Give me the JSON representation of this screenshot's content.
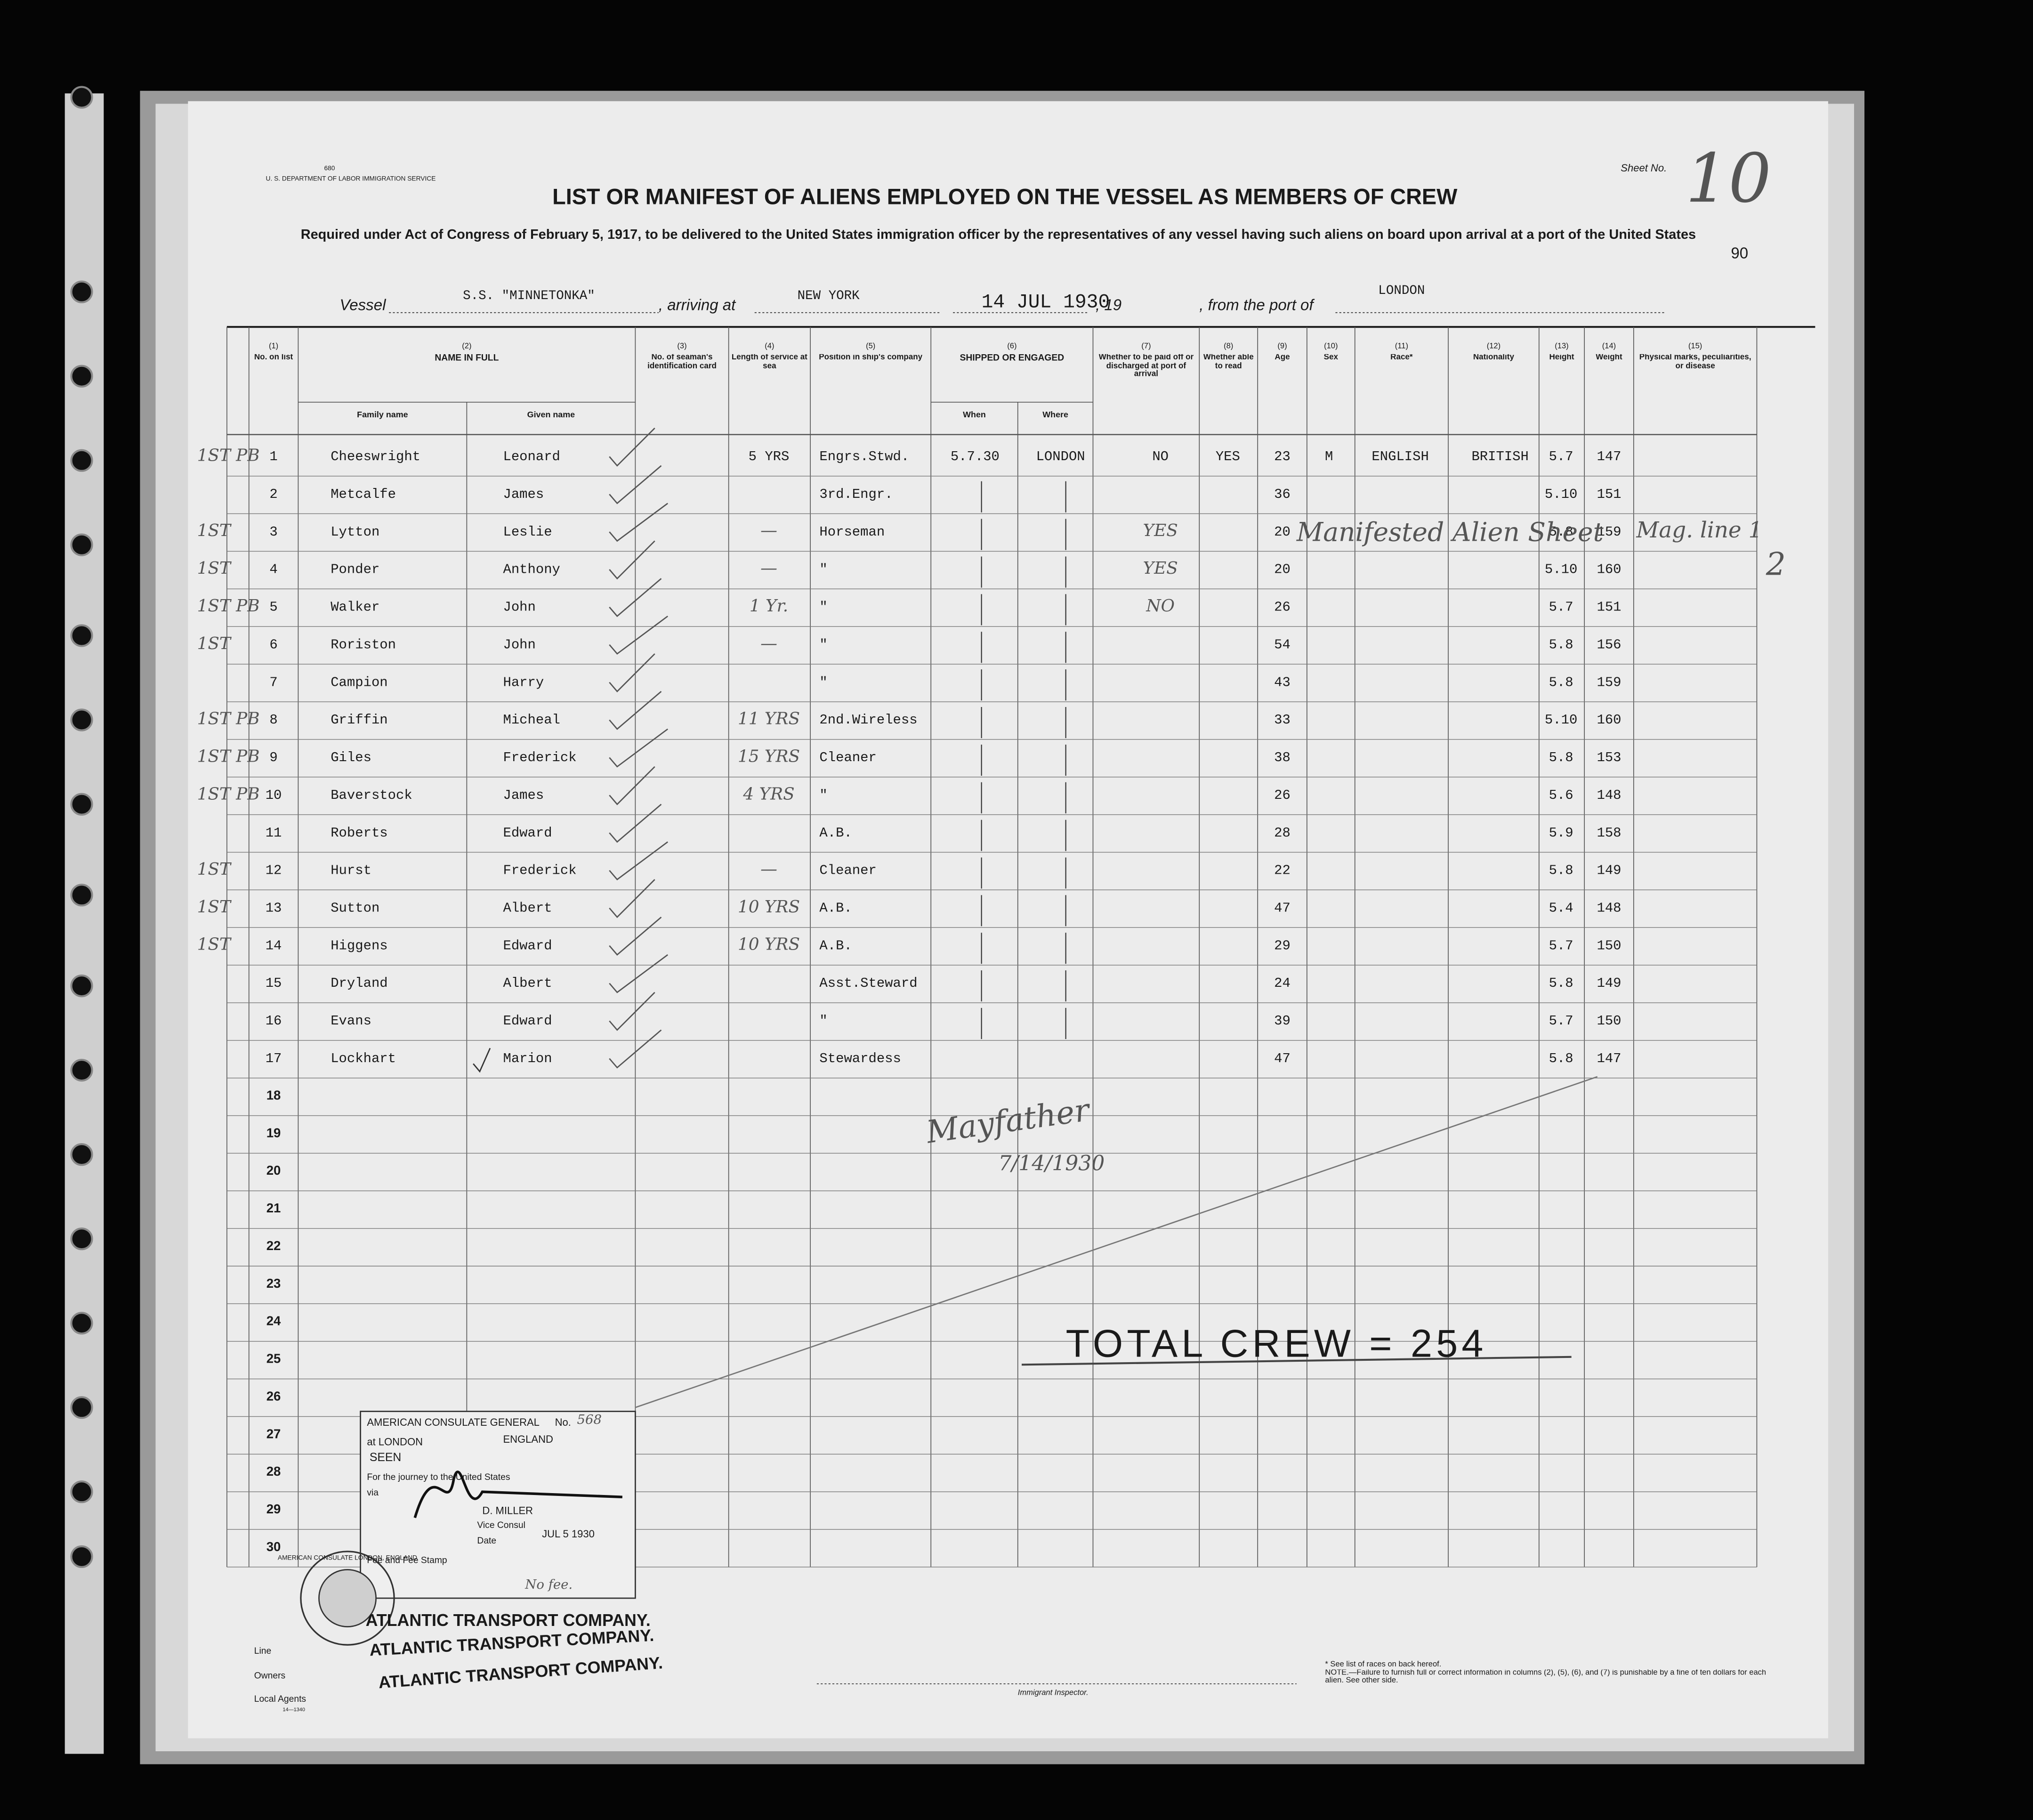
{
  "header": {
    "form_stamp": "U. S. DEPARTMENT OF LABOR IMMIGRATION SERVICE",
    "form_no": "680",
    "sheet_label": "Sheet No.",
    "sheet_no": "10",
    "title": "LIST OR MANIFEST OF ALIENS EMPLOYED ON THE VESSEL AS MEMBERS OF CREW",
    "subtitle": "Required under Act of Congress of February 5, 1917, to be delivered to the United States immigration officer by the representatives of any vessel having such aliens on board upon arrival at a port of the United States",
    "page_no": "90"
  },
  "vessel_line": {
    "vessel_label": "Vessel",
    "vessel": "S.S. \"MINNETONKA\"",
    "arriving_label": ", arriving at",
    "arriving": "NEW YORK",
    "date": "14 JUL 1930",
    "year_label": ", 19",
    "from_label": ", from the port of",
    "from": "LONDON"
  },
  "table": {
    "columns": [
      {
        "num": "(1)",
        "label": "No. on list"
      },
      {
        "num": "(2)",
        "label": "NAME IN FULL",
        "sub": [
          "Family name",
          "Given name"
        ]
      },
      {
        "num": "(3)",
        "label": "No. of seaman's identification card"
      },
      {
        "num": "(4)",
        "label": "Length of service at sea"
      },
      {
        "num": "(5)",
        "label": "Position in ship's company"
      },
      {
        "num": "(6)",
        "label": "SHIPPED OR ENGAGED",
        "sub": [
          "When",
          "Where"
        ]
      },
      {
        "num": "(7)",
        "label": "Whether to be paid off or discharged at port of arrival"
      },
      {
        "num": "(8)",
        "label": "Whether able to read"
      },
      {
        "num": "(9)",
        "label": "Age"
      },
      {
        "num": "(10)",
        "label": "Sex"
      },
      {
        "num": "(11)",
        "label": "Race*"
      },
      {
        "num": "(12)",
        "label": "Nationality"
      },
      {
        "num": "(13)",
        "label": "Height"
      },
      {
        "num": "(14)",
        "label": "Weight"
      },
      {
        "num": "(15)",
        "label": "Physical marks, peculiarities, or disease"
      }
    ],
    "rows": [
      [
        "1",
        "Cheeswright",
        "Leonard",
        "5 YRS",
        "Engrs.Stwd.",
        "5.7.30",
        "LONDON",
        "NO",
        "YES",
        "23",
        "M",
        "ENGLISH",
        "BRITISH",
        "5.7",
        "147"
      ],
      [
        "2",
        "Metcalfe",
        "James",
        null,
        "3rd.Engr.",
        null,
        null,
        null,
        null,
        "36",
        null,
        null,
        null,
        "5.10",
        "151"
      ],
      [
        "3",
        "Lytton",
        "Leslie",
        "—",
        "Horseman",
        null,
        null,
        "YES",
        null,
        "20",
        null,
        null,
        null,
        "5.8",
        "159"
      ],
      [
        "4",
        "Ponder",
        "Anthony",
        "—",
        "\"",
        null,
        null,
        "YES",
        null,
        "20",
        null,
        null,
        null,
        "5.10",
        "160"
      ],
      [
        "5",
        "Walker",
        "John",
        "1 Yr.",
        "\"",
        null,
        null,
        "NO",
        null,
        "26",
        null,
        null,
        null,
        "5.7",
        "151"
      ],
      [
        "6",
        "Roriston",
        "John",
        "—",
        "\"",
        null,
        null,
        null,
        null,
        "54",
        null,
        null,
        null,
        "5.8",
        "156"
      ],
      [
        "7",
        "Campion",
        "Harry",
        null,
        "\"",
        null,
        null,
        null,
        null,
        "43",
        null,
        null,
        null,
        "5.8",
        "159"
      ],
      [
        "8",
        "Griffin",
        "Micheal",
        "11 YRS",
        "2nd.Wireless",
        null,
        null,
        null,
        null,
        "33",
        null,
        null,
        null,
        "5.10",
        "160"
      ],
      [
        "9",
        "Giles",
        "Frederick",
        "15 YRS",
        "Cleaner",
        null,
        null,
        null,
        null,
        "38",
        null,
        null,
        null,
        "5.8",
        "153"
      ],
      [
        "10",
        "Baverstock",
        "James",
        "4 YRS",
        "\"",
        null,
        null,
        null,
        null,
        "26",
        null,
        null,
        null,
        "5.6",
        "148"
      ],
      [
        "11",
        "Roberts",
        "Edward",
        null,
        "A.B.",
        null,
        null,
        null,
        null,
        "28",
        null,
        null,
        null,
        "5.9",
        "158"
      ],
      [
        "12",
        "Hurst",
        "Frederick",
        "—",
        "Cleaner",
        null,
        null,
        null,
        null,
        "22",
        null,
        null,
        null,
        "5.8",
        "149"
      ],
      [
        "13",
        "Sutton",
        "Albert",
        "10 YRS",
        "A.B.",
        null,
        null,
        null,
        null,
        "47",
        null,
        null,
        null,
        "5.4",
        "148"
      ],
      [
        "14",
        "Higgens",
        "Edward",
        "10 YRS",
        "A.B.",
        null,
        null,
        null,
        null,
        "29",
        null,
        null,
        null,
        "5.7",
        "150"
      ],
      [
        "15",
        "Dryland",
        "Albert",
        null,
        "Asst.Steward",
        null,
        null,
        null,
        null,
        "24",
        null,
        null,
        null,
        "5.8",
        "149"
      ],
      [
        "16",
        "Evans",
        "Edward",
        null,
        "\"",
        null,
        null,
        null,
        null,
        "39",
        null,
        null,
        null,
        "5.7",
        "150"
      ],
      [
        "17",
        "Lockhart",
        "Marion",
        null,
        "Stewardess",
        null,
        null,
        null,
        null,
        "47",
        null,
        null,
        null,
        "5.8",
        "147"
      ]
    ],
    "margin_notes": [
      "1ST PB",
      null,
      "1ST",
      "1ST",
      "1ST PB",
      "1ST",
      null,
      "1ST PB",
      "1ST PB",
      "1ST PB",
      null,
      "1ST",
      "1ST",
      "1ST",
      null,
      null,
      null
    ],
    "blank_rows": [
      "18",
      "19",
      "20",
      "21",
      "22",
      "23",
      "24",
      "25",
      "26",
      "27",
      "28",
      "29",
      "30"
    ]
  },
  "annotations": {
    "manifested": "Manifested Alien Sheet",
    "line_note": "Mag. line 1",
    "line_note_2": "2",
    "inspector_signature": "Mayfather",
    "inspector_date": "7/14/1930",
    "total_crew": "TOTAL CREW = 254"
  },
  "stamp": {
    "title": "AMERICAN CONSULATE GENERAL",
    "no_label": "No.",
    "no": "568",
    "at": "at LONDON",
    "country": "ENGLAND",
    "seen": "SEEN",
    "journey": "For the journey to the United States",
    "via": "via",
    "consul": "D. MILLER",
    "consul_title": "Vice Consul",
    "date_label": "Date",
    "date": "JUL 5 1930",
    "fee": "Fee and Fee Stamp",
    "fee_note": "No fee.",
    "seal": "AMERICAN CONSULATE LONDON, ENGLAND"
  },
  "footer": {
    "line_label": "Line",
    "owners_label": "Owners",
    "agents_label": "Local Agents",
    "form_code": "14—1340",
    "company": "ATLANTIC TRANSPORT COMPANY.",
    "inspector_label": "Immigrant Inspector.",
    "races_note": "* See list of races on back hereof.",
    "note": "NOTE.—Failure to furnish full or correct information in columns (2), (5), (6), and (7) is punishable by a fine of ten dollars for each alien. See other side."
  }
}
